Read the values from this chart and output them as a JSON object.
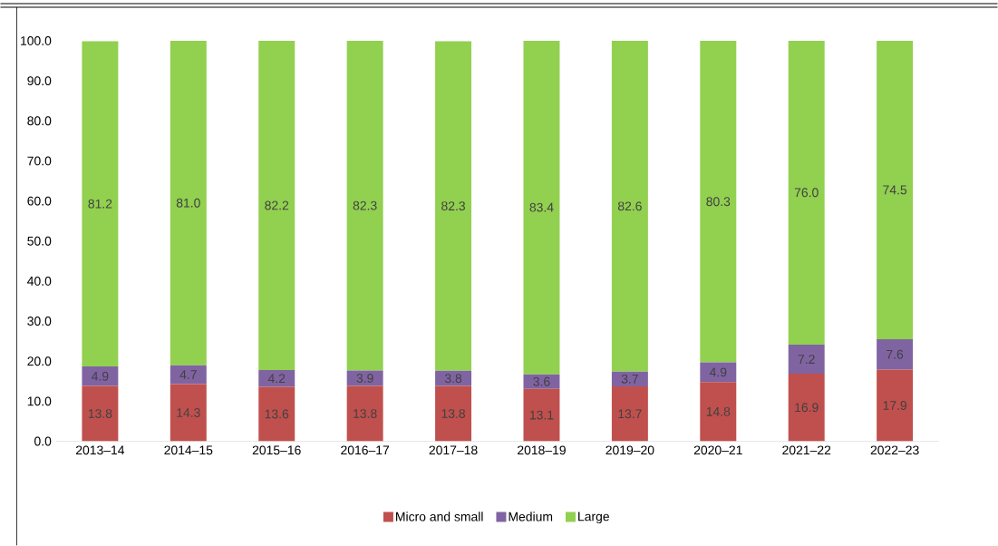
{
  "chart_data": {
    "type": "bar",
    "stacked": true,
    "categories": [
      "2013–14",
      "2014–15",
      "2015–16",
      "2016–17",
      "2017–18",
      "2018–19",
      "2019–20",
      "2020–21",
      "2021–22",
      "2022–23"
    ],
    "series": [
      {
        "name": "Micro and small",
        "color": "#c0504d",
        "values": [
          13.8,
          14.3,
          13.6,
          13.8,
          13.8,
          13.1,
          13.7,
          14.8,
          16.9,
          17.9
        ],
        "value_labels": [
          "13.8",
          "14.3",
          "13.6",
          "13.8",
          "13.8",
          "13.1",
          "13.7",
          "14.8",
          "16.9",
          "17.9"
        ]
      },
      {
        "name": "Medium",
        "color": "#8064a2",
        "values": [
          4.9,
          4.7,
          4.2,
          3.9,
          3.8,
          3.6,
          3.7,
          4.9,
          7.2,
          7.6
        ],
        "value_labels": [
          "4.9",
          "4.7",
          "4.2",
          "3.9",
          "3.8",
          "3.6",
          "3.7",
          "4.9",
          "7.2",
          "7.6"
        ]
      },
      {
        "name": "Large",
        "color": "#92d050",
        "values": [
          81.2,
          81.0,
          82.2,
          82.3,
          82.3,
          83.4,
          82.6,
          80.3,
          76.0,
          74.5
        ],
        "value_labels": [
          "81.2",
          "81.0",
          "82.2",
          "82.3",
          "82.3",
          "83.4",
          "82.6",
          "80.3",
          "76.0",
          "74.5"
        ]
      }
    ],
    "ylim": [
      0,
      100
    ],
    "yticks": [
      {
        "value": 0,
        "label": "0.0"
      },
      {
        "value": 10,
        "label": "10.0"
      },
      {
        "value": 20,
        "label": "20.0"
      },
      {
        "value": 30,
        "label": "30.0"
      },
      {
        "value": 40,
        "label": "40.0"
      },
      {
        "value": 50,
        "label": "50.0"
      },
      {
        "value": 60,
        "label": "60.0"
      },
      {
        "value": 70,
        "label": "70.0"
      },
      {
        "value": 80,
        "label": "80.0"
      },
      {
        "value": 90,
        "label": "90.0"
      },
      {
        "value": 100,
        "label": "100.0"
      }
    ],
    "grid": false,
    "legend": "bottom"
  }
}
